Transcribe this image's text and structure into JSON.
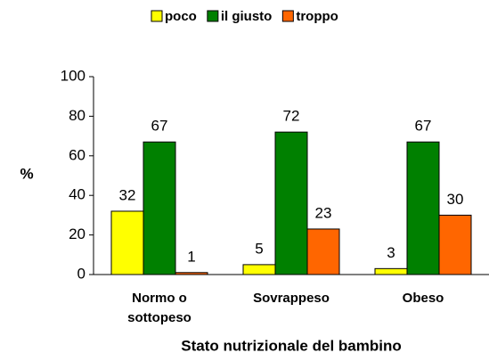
{
  "chart_data": {
    "type": "bar",
    "categories": [
      "Normo o sottopeso",
      "Sovrappeso",
      "Obeso"
    ],
    "series": [
      {
        "name": "poco",
        "color": "#ffff00",
        "values": [
          32,
          5,
          3
        ]
      },
      {
        "name": "il giusto",
        "color": "#008000",
        "values": [
          67,
          72,
          67
        ]
      },
      {
        "name": "troppo",
        "color": "#ff6600",
        "values": [
          1,
          23,
          30
        ]
      }
    ],
    "ylim": [
      0,
      100
    ],
    "yticks": [
      0,
      20,
      40,
      60,
      80,
      100
    ],
    "ylabel": "%",
    "xlabel": "Stato nutrizionale del bambino",
    "legend": "top"
  }
}
